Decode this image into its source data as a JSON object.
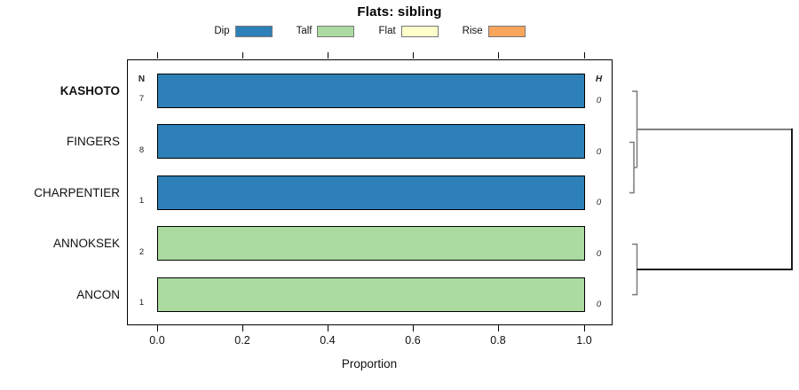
{
  "title": "Flats: sibling",
  "legend": {
    "items": [
      {
        "label": "Dip",
        "color": "#2E81B8"
      },
      {
        "label": "Talf",
        "color": "#ABDBA0"
      },
      {
        "label": "Flat",
        "color": "#FFFFCC"
      },
      {
        "label": "Rise",
        "color": "#FAA55C"
      }
    ]
  },
  "chart_data": {
    "type": "bar",
    "orientation": "horizontal",
    "title": "Flats: sibling",
    "categories": [
      "KASHOTO",
      "FINGERS",
      "CHARPENTIER",
      "ANNOKSEK",
      "ANCON"
    ],
    "highlighted_category": "KASHOTO",
    "series": [
      {
        "name": "Dip",
        "color": "#2E81B8",
        "values": [
          1.0,
          1.0,
          1.0,
          0,
          0
        ]
      },
      {
        "name": "Talf",
        "color": "#ABDBA0",
        "values": [
          0,
          0,
          0,
          1.0,
          1.0
        ]
      },
      {
        "name": "Flat",
        "color": "#FFFFCC",
        "values": [
          0,
          0,
          0,
          0,
          0
        ]
      },
      {
        "name": "Rise",
        "color": "#FAA55C",
        "values": [
          0,
          0,
          0,
          0,
          0
        ]
      }
    ],
    "bar_values": [
      1.0,
      1.0,
      1.0,
      1.0,
      1.0
    ],
    "bar_colors": [
      "#2E81B8",
      "#2E81B8",
      "#2E81B8",
      "#ABDBA0",
      "#ABDBA0"
    ],
    "n_header": "N",
    "n_values": [
      "7",
      "8",
      "1",
      "2",
      "1"
    ],
    "h_header": "H",
    "h_values": [
      "0",
      "0",
      "0",
      "0",
      "0"
    ],
    "xlabel": "Proportion",
    "xlim": [
      0.0,
      1.0
    ],
    "xticks": [
      "0.0",
      "0.2",
      "0.4",
      "0.6",
      "0.8",
      "1.0"
    ],
    "grid": false,
    "legend_position": "top",
    "dendrogram": {
      "present": true,
      "side": "right",
      "structure": "((KASHOTO,(FINGERS,CHARPENTIER)),(ANNOKSEK,ANCON))",
      "merge_heights": [
        0,
        0,
        0,
        0
      ]
    }
  }
}
